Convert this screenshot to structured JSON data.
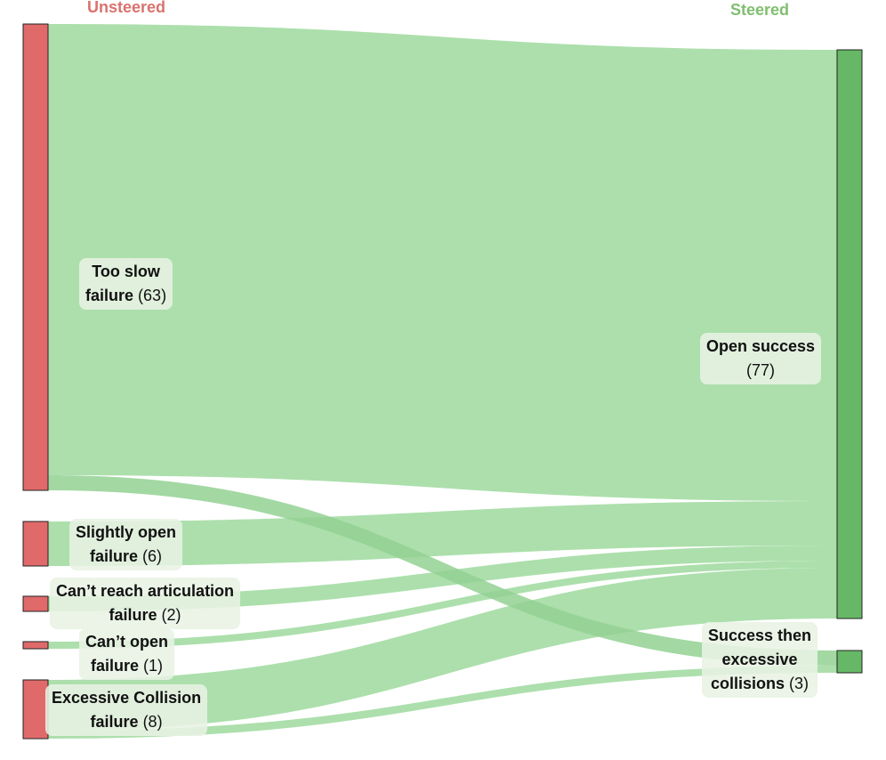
{
  "columns": {
    "left_title": "Unsteered",
    "right_title": "Steered"
  },
  "colors": {
    "unsteered_node": "#e06a6a",
    "steered_node": "#66b866",
    "link": "#acdfac",
    "link_dark": "#93d193"
  },
  "nodes": {
    "too_slow": {
      "line1": "Too slow",
      "line2": "failure",
      "count": "(63)",
      "value": 63
    },
    "slightly_open": {
      "line1": "Slightly open",
      "line2": "failure",
      "count": "(6)",
      "value": 6
    },
    "cant_reach": {
      "line1": "Can’t reach articulation",
      "line2": "failure",
      "count": "(2)",
      "value": 2
    },
    "cant_open": {
      "line1": "Can’t open",
      "line2": "failure",
      "count": "(1)",
      "value": 1
    },
    "excessive_collision": {
      "line1": "Excessive Collision",
      "line2": "failure",
      "count": "(8)",
      "value": 8
    },
    "open_success": {
      "line1": "Open success",
      "count": "(77)",
      "value": 77
    },
    "success_then": {
      "line1": "Success then",
      "line2": "excessive",
      "line3": "collisions",
      "count": "(3)",
      "value": 3
    }
  }
}
